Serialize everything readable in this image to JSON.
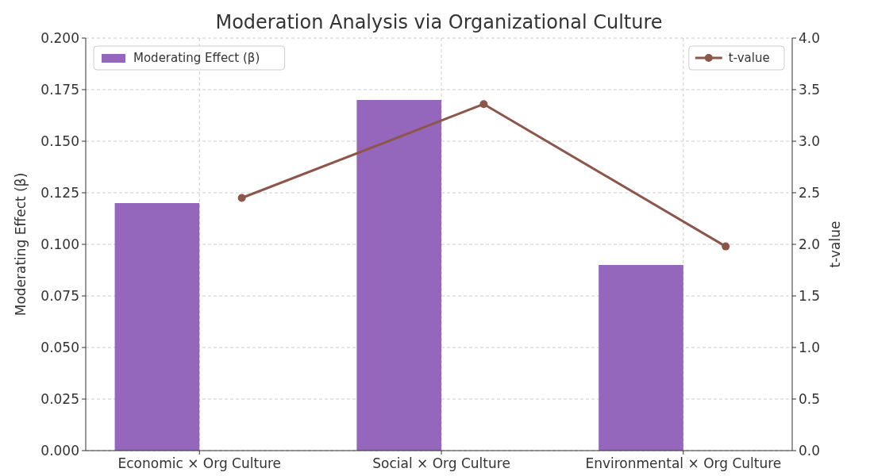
{
  "chart_data": {
    "type": "bar",
    "title": "Moderation Analysis via Organizational Culture",
    "ylabel": "Moderating Effect (β)",
    "y2label": "t-value",
    "categories": [
      "Economic × Org Culture",
      "Social × Org Culture",
      "Environmental × Org Culture"
    ],
    "series": [
      {
        "name": "Moderating Effect (β)",
        "color": "#9467bd",
        "values": [
          0.12,
          0.17,
          0.09
        ]
      },
      {
        "name": "t-value",
        "type": "line",
        "axis": "y2",
        "color": "#8c564b",
        "values": [
          2.45,
          3.36,
          1.98
        ]
      }
    ],
    "ylim": [
      0,
      0.2
    ],
    "yticks": [
      {
        "value": 0,
        "label": "0.000"
      },
      {
        "value": 0.025,
        "label": "0.025"
      },
      {
        "value": 0.05,
        "label": "0.050"
      },
      {
        "value": 0.075,
        "label": "0.075"
      },
      {
        "value": 0.1,
        "label": "0.100"
      },
      {
        "value": 0.125,
        "label": "0.125"
      },
      {
        "value": 0.15,
        "label": "0.150"
      },
      {
        "value": 0.175,
        "label": "0.175"
      },
      {
        "value": 0.2,
        "label": "0.200"
      }
    ],
    "y2lim": [
      0,
      4
    ],
    "y2ticks": [
      {
        "value": 0,
        "label": "0.0"
      },
      {
        "value": 0.5,
        "label": "0.5"
      },
      {
        "value": 1,
        "label": "1.0"
      },
      {
        "value": 1.5,
        "label": "1.5"
      },
      {
        "value": 2,
        "label": "2.0"
      },
      {
        "value": 2.5,
        "label": "2.5"
      },
      {
        "value": 3,
        "label": "3.0"
      },
      {
        "value": 3.5,
        "label": "3.5"
      },
      {
        "value": 4,
        "label": "4.0"
      }
    ],
    "grid": true,
    "legend": "top",
    "marker": "circle"
  }
}
